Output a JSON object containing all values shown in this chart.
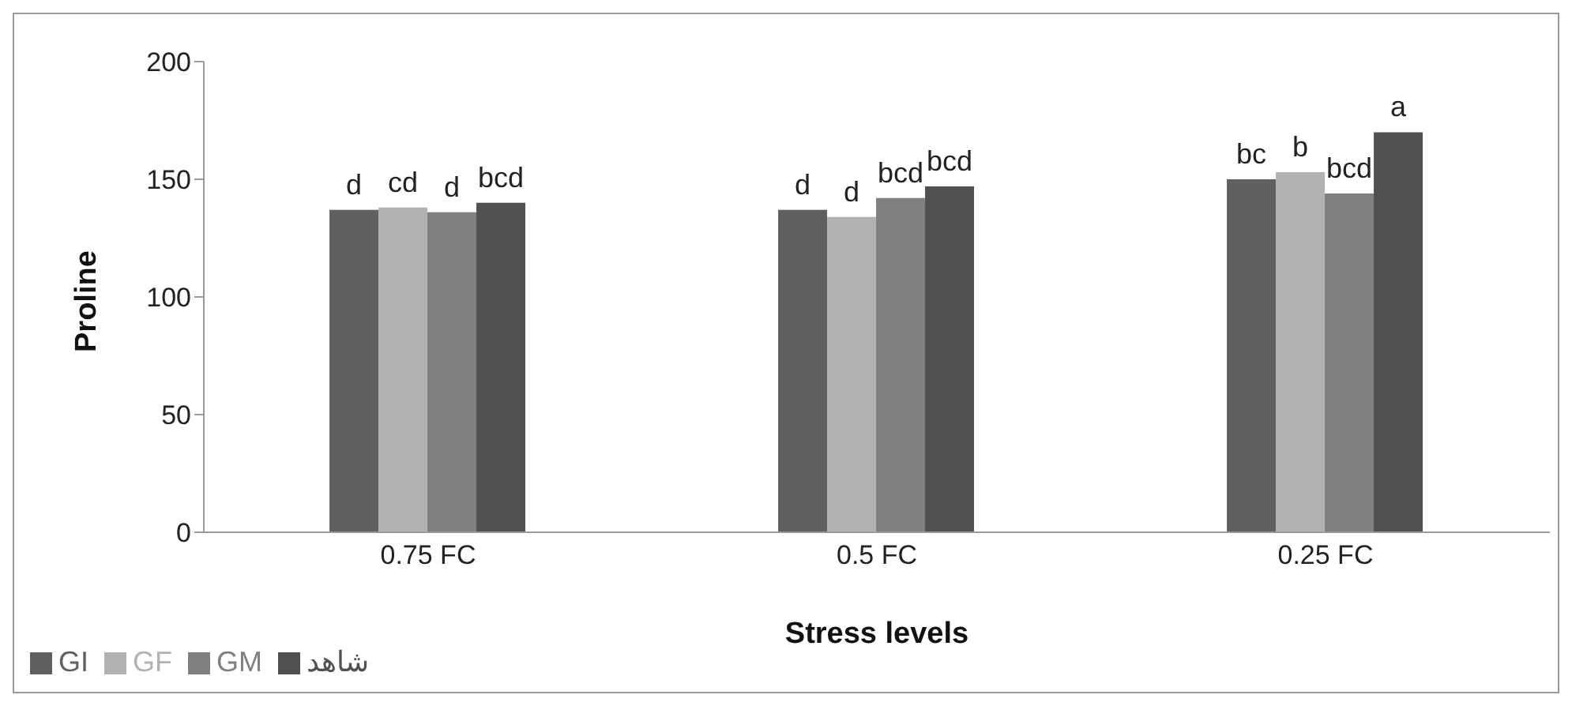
{
  "chart_data": {
    "type": "bar",
    "xlabel": "Stress levels",
    "ylabel": "Proline",
    "categories": [
      "0.75 FC",
      "0.5 FC",
      "0.25 FC"
    ],
    "series": [
      {
        "name": "GI",
        "color": "#606060",
        "values": [
          137,
          137,
          150
        ],
        "value_labels": [
          "d",
          "d",
          "bc"
        ]
      },
      {
        "name": "GF",
        "color": "#b2b2b2",
        "values": [
          138,
          134,
          153
        ],
        "value_labels": [
          "cd",
          "d",
          "b"
        ]
      },
      {
        "name": "GM",
        "color": "#808080",
        "values": [
          136,
          142,
          144
        ],
        "value_labels": [
          "d",
          "bcd",
          "bcd"
        ]
      },
      {
        "name": "شاهد",
        "color": "#505050",
        "values": [
          140,
          147,
          170
        ],
        "value_labels": [
          "bcd",
          "bcd",
          "a"
        ]
      }
    ],
    "ylim": [
      0,
      200
    ],
    "yticks": [
      0,
      50,
      100,
      150,
      200
    ],
    "grid": false,
    "legend": "bottom left"
  }
}
